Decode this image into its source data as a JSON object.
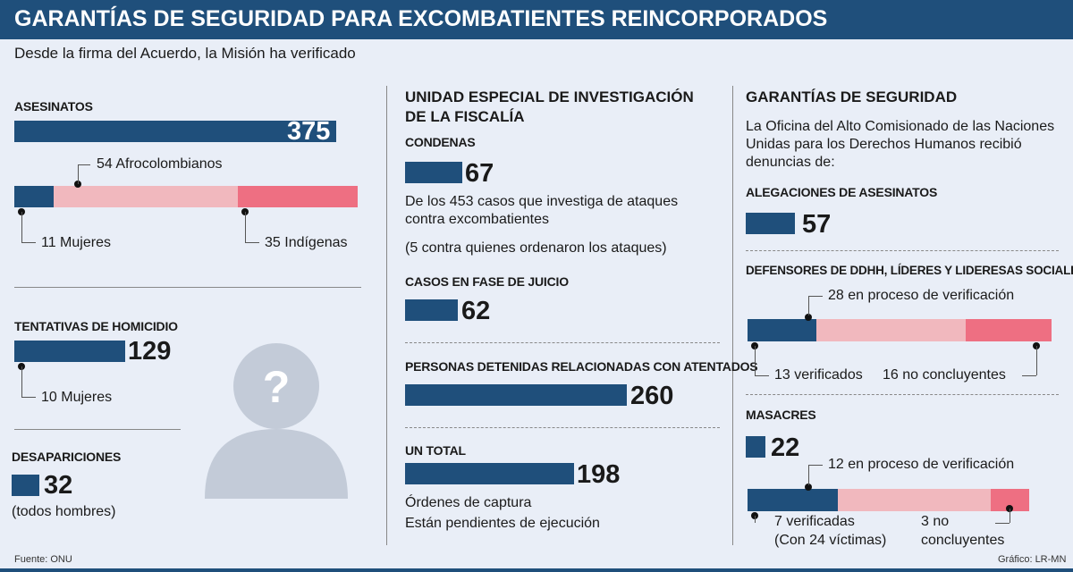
{
  "title": "GARANTÍAS DE SEGURIDAD PARA EXCOMBATIENTES REINCORPORADOS",
  "subtitle": "Desde la firma del Acuerdo, la Misión ha verificado",
  "colors": {
    "navy": "#1f4f7b",
    "light_pink": "#f1b8be",
    "pink": "#ee6f82",
    "background": "#e9eef7"
  },
  "left": {
    "asesinatos": {
      "label": "ASESINATOS",
      "value": "375",
      "breakdown": {
        "mujeres": "11 Mujeres",
        "afro": "54 Afrocolombianos",
        "indigenas": "35 Indígenas"
      }
    },
    "tentativas": {
      "label": "TENTATIVAS DE HOMICIDIO",
      "value": "129",
      "note": "10 Mujeres"
    },
    "desapariciones": {
      "label": "DESAPARICIONES",
      "value": "32",
      "note": "(todos hombres)"
    },
    "icon": "unknown-person-icon"
  },
  "middle": {
    "heading": "UNIDAD ESPECIAL DE INVESTIGACIÓN DE LA FISCALÍA",
    "condenas": {
      "label": "CONDENAS",
      "value": "67",
      "desc": "De los 453 casos que investiga de ataques contra excombatientes",
      "desc2": "(5 contra quienes ordenaron los ataques)"
    },
    "juicio": {
      "label": "CASOS EN FASE DE JUICIO",
      "value": "62"
    },
    "detenidas": {
      "label": "PERSONAS DETENIDAS RELACIONADAS CON ATENTADOS",
      "value": "260"
    },
    "total": {
      "label": "UN TOTAL",
      "value": "198",
      "desc1": "Órdenes de captura",
      "desc2": "Están pendientes de ejecución"
    }
  },
  "right": {
    "heading": "GARANTÍAS DE SEGURIDAD",
    "intro": "La Oficina del Alto Comisionado de las Naciones Unidas para los Derechos Humanos recibió denuncias de:",
    "alegaciones": {
      "label": "ALEGACIONES DE ASESINATOS",
      "value": "57"
    },
    "defensores": {
      "label": "DEFENSORES DE DDHH, LÍDERES Y LIDERESAS SOCIALES",
      "verificados": "13 verificados",
      "proceso": "28 en proceso de verificación",
      "no_concluyentes": "16 no concluyentes"
    },
    "masacres": {
      "label": "MASACRES",
      "value": "22",
      "verificadas": "7 verificadas",
      "victimas": "(Con 24 víctimas)",
      "proceso": "12 en proceso de verificación",
      "no_concl_1": "3 no",
      "no_concl_2": "concluyentes"
    }
  },
  "footer": {
    "source": "Fuente: ONU",
    "credit": "Gráfico: LR-MN"
  },
  "chart_data": [
    {
      "type": "bar",
      "title": "ASESINATOS",
      "values": [
        375
      ],
      "breakdown": [
        {
          "name": "Mujeres",
          "value": 11
        },
        {
          "name": "Afrocolombianos",
          "value": 54
        },
        {
          "name": "Indígenas",
          "value": 35
        }
      ]
    },
    {
      "type": "bar",
      "title": "TENTATIVAS DE HOMICIDIO",
      "values": [
        129
      ],
      "breakdown": [
        {
          "name": "Mujeres",
          "value": 10
        }
      ]
    },
    {
      "type": "bar",
      "title": "DESAPARICIONES",
      "values": [
        32
      ]
    },
    {
      "type": "bar",
      "categories": [
        "CONDENAS",
        "CASOS EN FASE DE JUICIO",
        "PERSONAS DETENIDAS RELACIONADAS CON ATENTADOS",
        "UN TOTAL"
      ],
      "values": [
        67,
        62,
        260,
        198
      ]
    },
    {
      "type": "bar",
      "title": "ALEGACIONES DE ASESINATOS",
      "values": [
        57
      ]
    },
    {
      "type": "bar",
      "title": "DEFENSORES DE DDHH, LÍDERES Y LIDERESAS SOCIALES",
      "breakdown": [
        {
          "name": "verificados",
          "value": 13
        },
        {
          "name": "en proceso de verificación",
          "value": 28
        },
        {
          "name": "no concluyentes",
          "value": 16
        }
      ]
    },
    {
      "type": "bar",
      "title": "MASACRES",
      "values": [
        22
      ],
      "breakdown": [
        {
          "name": "verificadas",
          "value": 7
        },
        {
          "name": "en proceso de verificación",
          "value": 12
        },
        {
          "name": "no concluyentes",
          "value": 3
        }
      ]
    }
  ]
}
